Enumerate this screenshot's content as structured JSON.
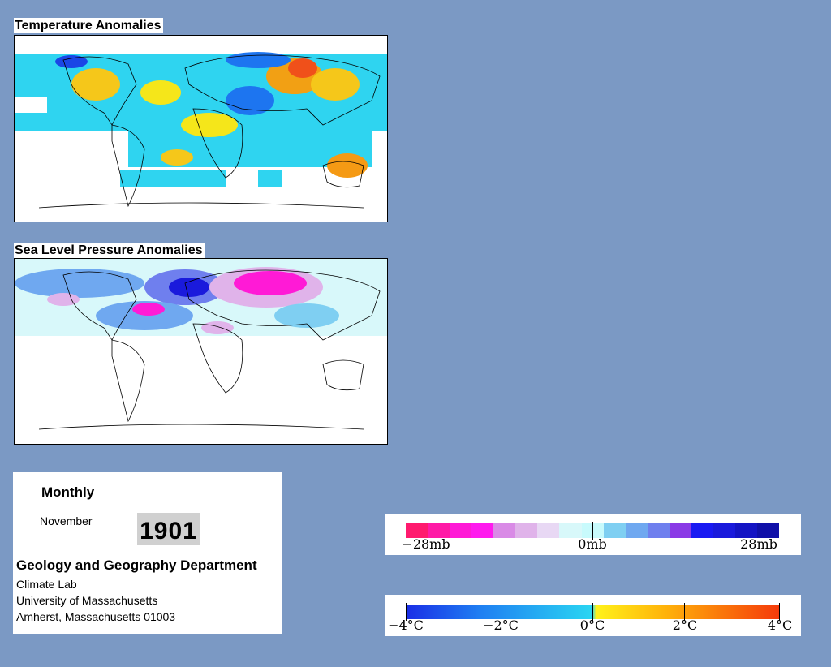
{
  "maps": {
    "temperature_title": "Temperature Anomalies",
    "pressure_title": "Sea Level Pressure Anomalies"
  },
  "info": {
    "period": "Monthly",
    "month": "November",
    "year": "1901",
    "department": "Geology and Geography Department",
    "lab": "Climate Lab",
    "university": "University of Massachusetts",
    "address": "Amherst, Massachusetts 01003"
  },
  "slp_legend": {
    "labels": [
      "−28mb",
      "0mb",
      "28mb"
    ],
    "colors": [
      "#ff1a6e",
      "#ff1aa6",
      "#ff1ad6",
      "#ff1aee",
      "#d98ae6",
      "#e0b3ea",
      "#e8d8f4",
      "#d8f8fa",
      "#c8fafc",
      "#7fcff2",
      "#6fa8f0",
      "#6f7fee",
      "#8a3ae6",
      "#1a1af2",
      "#1a1adc",
      "#1414c4",
      "#1010a8"
    ]
  },
  "temp_legend": {
    "labels": [
      "−4°C",
      "−2°C",
      "0°C",
      "2°C",
      "4°C"
    ]
  }
}
